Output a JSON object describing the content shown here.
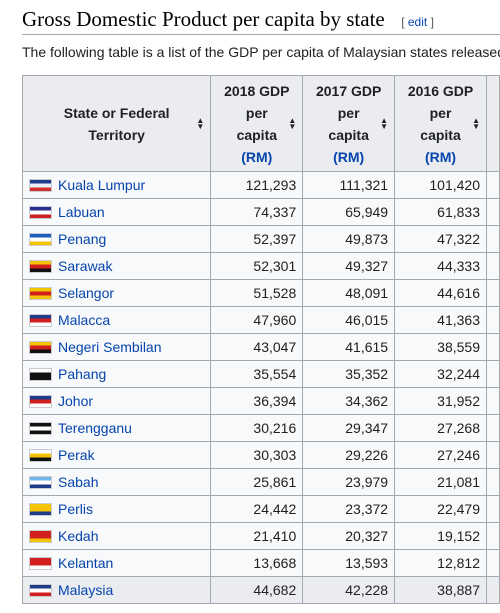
{
  "section": {
    "title": "Gross Domestic Product per capita by state",
    "edit_open": "[ ",
    "edit_label": "edit",
    "edit_close": " ]"
  },
  "intro": "The following table is a list of the GDP per capita of Malaysian states released",
  "table": {
    "headers": {
      "state": [
        "State or Federal",
        "Territory"
      ],
      "y2018": [
        "2018 GDP",
        "per",
        "capita"
      ],
      "y2017": [
        "2017 GDP",
        "per",
        "capita"
      ],
      "y2016": [
        "2016 GDP",
        "per",
        "capita"
      ],
      "unit": "(RM)"
    },
    "rows": [
      {
        "state": "Kuala Lumpur",
        "gdp2018": "121,293",
        "gdp2017": "111,321",
        "gdp2016": "101,420",
        "flag": "kuala-lumpur-flag-icon",
        "colors": [
          "#1e3a8a",
          "#e9eff7",
          "#d12e2e"
        ]
      },
      {
        "state": "Labuan",
        "gdp2018": "74,337",
        "gdp2017": "65,949",
        "gdp2016": "61,833",
        "flag": "labuan-flag-icon",
        "colors": [
          "#2b2f8f",
          "#ffffff",
          "#cc1f1f"
        ]
      },
      {
        "state": "Penang",
        "gdp2018": "52,397",
        "gdp2017": "49,873",
        "gdp2016": "47,322",
        "flag": "penang-flag-icon",
        "colors": [
          "#1f5fbf",
          "#ffffff",
          "#f4c400"
        ]
      },
      {
        "state": "Sarawak",
        "gdp2018": "52,301",
        "gdp2017": "49,327",
        "gdp2016": "44,333",
        "flag": "sarawak-flag-icon",
        "colors": [
          "#f4c400",
          "#d11f1f",
          "#111111"
        ]
      },
      {
        "state": "Selangor",
        "gdp2018": "51,528",
        "gdp2017": "48,091",
        "gdp2016": "44,616",
        "flag": "selangor-flag-icon",
        "colors": [
          "#f4c400",
          "#d11f1f",
          "#f4c400"
        ]
      },
      {
        "state": "Malacca",
        "gdp2018": "47,960",
        "gdp2017": "46,015",
        "gdp2016": "41,363",
        "flag": "malacca-flag-icon",
        "colors": [
          "#1e3a8a",
          "#d11f1f",
          "#ffffff"
        ]
      },
      {
        "state": "Negeri Sembilan",
        "gdp2018": "43,047",
        "gdp2017": "41,615",
        "gdp2016": "38,559",
        "flag": "negeri-sembilan-flag-icon",
        "colors": [
          "#f4c400",
          "#d11f1f",
          "#111111"
        ]
      },
      {
        "state": "Pahang",
        "gdp2018": "35,554",
        "gdp2017": "35,352",
        "gdp2016": "32,244",
        "flag": "pahang-flag-icon",
        "colors": [
          "#ffffff",
          "#111111",
          "#111111"
        ]
      },
      {
        "state": "Johor",
        "gdp2018": "36,394",
        "gdp2017": "34,362",
        "gdp2016": "31,952",
        "flag": "johor-flag-icon",
        "colors": [
          "#1e3a8a",
          "#d11f1f",
          "#ffffff"
        ]
      },
      {
        "state": "Terengganu",
        "gdp2018": "30,216",
        "gdp2017": "29,347",
        "gdp2016": "27,268",
        "flag": "terengganu-flag-icon",
        "colors": [
          "#111111",
          "#ffffff",
          "#111111"
        ]
      },
      {
        "state": "Perak",
        "gdp2018": "30,303",
        "gdp2017": "29,226",
        "gdp2016": "27,246",
        "flag": "perak-flag-icon",
        "colors": [
          "#ffffff",
          "#f4c400",
          "#111111"
        ]
      },
      {
        "state": "Sabah",
        "gdp2018": "25,861",
        "gdp2017": "23,979",
        "gdp2016": "21,081",
        "flag": "sabah-flag-icon",
        "colors": [
          "#6fb7e8",
          "#ffffff",
          "#1e3a8a"
        ]
      },
      {
        "state": "Perlis",
        "gdp2018": "24,442",
        "gdp2017": "23,372",
        "gdp2016": "22,479",
        "flag": "perlis-flag-icon",
        "colors": [
          "#f4c400",
          "#f4c400",
          "#1e3a8a"
        ]
      },
      {
        "state": "Kedah",
        "gdp2018": "21,410",
        "gdp2017": "20,327",
        "gdp2016": "19,152",
        "flag": "kedah-flag-icon",
        "colors": [
          "#d11f1f",
          "#d11f1f",
          "#f4c400"
        ]
      },
      {
        "state": "Kelantan",
        "gdp2018": "13,668",
        "gdp2017": "13,593",
        "gdp2016": "12,812",
        "flag": "kelantan-flag-icon",
        "colors": [
          "#d11f1f",
          "#d11f1f",
          "#ffffff"
        ]
      },
      {
        "state": "Malaysia",
        "gdp2018": "44,682",
        "gdp2017": "42,228",
        "gdp2016": "38,887",
        "flag": "malaysia-flag-icon",
        "colors": [
          "#1e3a8a",
          "#ffffff",
          "#d11f1f"
        ],
        "total": true
      }
    ]
  }
}
